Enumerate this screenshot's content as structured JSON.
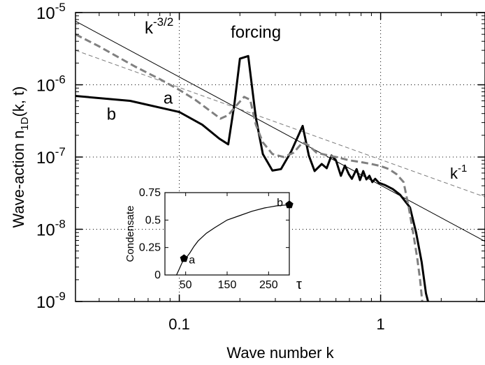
{
  "chart_data": [
    {
      "type": "line",
      "xlabel": "Wave number k",
      "ylabel_main": "Wave-action n",
      "ylabel_sub": "1D",
      "ylabel_tail": "(k, t)",
      "xscale": "log",
      "yscale": "log",
      "xlim": [
        0.0305,
        3.3
      ],
      "ylim": [
        1e-09,
        1e-05
      ],
      "grid": true,
      "x_ticks": [
        {
          "value": 0.1,
          "label": "0.1"
        },
        {
          "value": 1,
          "label": "1"
        }
      ],
      "y_ticks": [
        {
          "value": 1e-09,
          "base": "10",
          "exp": "-9"
        },
        {
          "value": 1e-08,
          "base": "10",
          "exp": "-8"
        },
        {
          "value": 1e-07,
          "base": "10",
          "exp": "-7"
        },
        {
          "value": 1e-06,
          "base": "10",
          "exp": "-6"
        },
        {
          "value": 1e-05,
          "base": "10",
          "exp": "-5"
        }
      ],
      "series": [
        {
          "name": "b",
          "style": "solid-thick",
          "color": "#000000",
          "points": [
            [
              0.0305,
              7e-07
            ],
            [
              0.057,
              6e-07
            ],
            [
              0.1,
              4.2e-07
            ],
            [
              0.13,
              2.8e-07
            ],
            [
              0.158,
              1.8e-07
            ],
            [
              0.175,
              1.5e-07
            ],
            [
              0.188,
              5.5e-07
            ],
            [
              0.2,
              2.3e-06
            ],
            [
              0.22,
              2.5e-06
            ],
            [
              0.24,
              3.5e-07
            ],
            [
              0.26,
              1.1e-07
            ],
            [
              0.29,
              6.5e-08
            ],
            [
              0.32,
              6.8e-08
            ],
            [
              0.36,
              1.2e-07
            ],
            [
              0.41,
              2.7e-07
            ],
            [
              0.44,
              1.05e-07
            ],
            [
              0.47,
              6.4e-08
            ],
            [
              0.51,
              8e-08
            ],
            [
              0.54,
              7e-08
            ],
            [
              0.57,
              1.05e-07
            ],
            [
              0.6,
              9e-08
            ],
            [
              0.635,
              5.5e-08
            ],
            [
              0.665,
              7.6e-08
            ],
            [
              0.695,
              5.8e-08
            ],
            [
              0.72,
              5e-08
            ],
            [
              0.76,
              6.8e-08
            ],
            [
              0.79,
              4.8e-08
            ],
            [
              0.82,
              6.4e-08
            ],
            [
              0.85,
              4.9e-08
            ],
            [
              0.88,
              5.5e-08
            ],
            [
              0.91,
              4.5e-08
            ],
            [
              0.94,
              5e-08
            ],
            [
              0.98,
              4.4e-08
            ],
            [
              1.05,
              4.1e-08
            ],
            [
              1.15,
              3.6e-08
            ],
            [
              1.25,
              3e-08
            ],
            [
              1.4,
              2e-08
            ],
            [
              1.5,
              9e-09
            ],
            [
              1.6,
              3.5e-09
            ],
            [
              1.68,
              1.3e-09
            ],
            [
              1.72,
              1e-09
            ]
          ]
        },
        {
          "name": "a",
          "style": "dashed-thick",
          "color": "#808080",
          "points": [
            [
              0.0305,
              5e-06
            ],
            [
              0.04,
              3.4e-06
            ],
            [
              0.06,
              1.8e-06
            ],
            [
              0.08,
              1.2e-06
            ],
            [
              0.1,
              8.5e-07
            ],
            [
              0.12,
              6.2e-07
            ],
            [
              0.14,
              4.5e-07
            ],
            [
              0.16,
              3.4e-07
            ],
            [
              0.175,
              3.8e-07
            ],
            [
              0.19,
              5e-07
            ],
            [
              0.21,
              6.8e-07
            ],
            [
              0.225,
              6.2e-07
            ],
            [
              0.24,
              2.8e-07
            ],
            [
              0.26,
              1.6e-07
            ],
            [
              0.29,
              1.1e-07
            ],
            [
              0.33,
              1e-07
            ],
            [
              0.37,
              1.15e-07
            ],
            [
              0.41,
              1.6e-07
            ],
            [
              0.44,
              1.45e-07
            ],
            [
              0.48,
              1.15e-07
            ],
            [
              0.55,
              1.05e-07
            ],
            [
              0.6,
              1e-07
            ],
            [
              0.7,
              9e-08
            ],
            [
              0.8,
              8.5e-08
            ],
            [
              0.9,
              8e-08
            ],
            [
              1.0,
              7.5e-08
            ],
            [
              1.1,
              6.8e-08
            ],
            [
              1.2,
              5.8e-08
            ],
            [
              1.3,
              4.5e-08
            ],
            [
              1.38,
              2e-08
            ],
            [
              1.45,
              9e-09
            ],
            [
              1.52,
              4e-09
            ],
            [
              1.57,
              2e-09
            ],
            [
              1.61,
              1e-09
            ]
          ]
        }
      ],
      "reference_lines": [
        {
          "label_base": "k",
          "label_exp": "-3/2",
          "color": "#000000",
          "dashed": false,
          "points": [
            [
              0.0305,
              7.6e-06
            ],
            [
              3.3,
              6.8e-09
            ]
          ]
        },
        {
          "label_base": "k",
          "label_exp": "-1",
          "color": "#808080",
          "dashed": true,
          "points": [
            [
              0.0305,
              3e-06
            ],
            [
              3.3,
              2.8e-08
            ]
          ]
        }
      ],
      "annotations": [
        {
          "text": "forcing",
          "k": 0.24,
          "y": 4.5e-06
        },
        {
          "text": "a",
          "k": 0.088,
          "y": 5.5e-07
        },
        {
          "text": "b",
          "k": 0.046,
          "y": 3.3e-07
        }
      ]
    },
    {
      "type": "line",
      "ylabel": "Condensate",
      "xlabel": "τ",
      "xlim": [
        0,
        300
      ],
      "ylim": [
        0,
        0.75
      ],
      "grid": false,
      "x_ticks": [
        {
          "value": 50,
          "label": "50"
        },
        {
          "value": 150,
          "label": "150"
        },
        {
          "value": 250,
          "label": "250"
        }
      ],
      "y_ticks": [
        {
          "value": 0,
          "label": "0"
        },
        {
          "value": 0.25,
          "label": "0.25"
        },
        {
          "value": 0.5,
          "label": "0.5"
        },
        {
          "value": 0.75,
          "label": "0.75"
        }
      ],
      "series": [
        {
          "name": "Condensate",
          "color": "#000000",
          "points": [
            [
              28,
              0
            ],
            [
              34,
              0.05
            ],
            [
              40,
              0.1
            ],
            [
              45,
              0.14
            ],
            [
              50,
              0.15
            ],
            [
              60,
              0.2
            ],
            [
              70,
              0.26
            ],
            [
              80,
              0.31
            ],
            [
              100,
              0.38
            ],
            [
              120,
              0.43
            ],
            [
              150,
              0.5
            ],
            [
              180,
              0.54
            ],
            [
              210,
              0.58
            ],
            [
              240,
              0.61
            ],
            [
              270,
              0.63
            ],
            [
              300,
              0.64
            ]
          ]
        }
      ],
      "markers": [
        {
          "label": "a",
          "tau": 46,
          "value": 0.15
        },
        {
          "label": "b",
          "tau": 300,
          "value": 0.64
        }
      ]
    }
  ]
}
